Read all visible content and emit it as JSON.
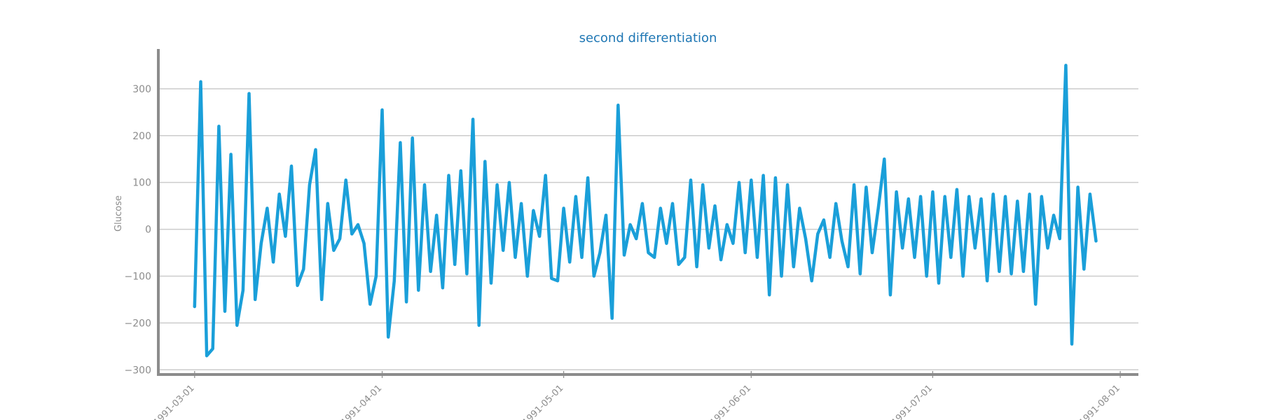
{
  "chart_data": {
    "type": "line",
    "title": "second differentiation",
    "xlabel": "",
    "ylabel": "Glucose",
    "x_ticks": [
      "1991-03-01",
      "1991-04-01",
      "1991-05-01",
      "1991-06-01",
      "1991-07-01",
      "1991-08-01"
    ],
    "y_ticks": [
      -300,
      -200,
      -100,
      0,
      100,
      200,
      300
    ],
    "xlim": [
      "1991-02-23",
      "1991-08-04"
    ],
    "ylim": [
      -310,
      385
    ],
    "grid": "horizontal",
    "line_color": "#1a9fd9",
    "series": [
      {
        "x": [
          "1991-03-01",
          "1991-03-02",
          "1991-03-03",
          "1991-03-04",
          "1991-03-05",
          "1991-03-06",
          "1991-03-07",
          "1991-03-08",
          "1991-03-09",
          "1991-03-10",
          "1991-03-11",
          "1991-03-12",
          "1991-03-13",
          "1991-03-14",
          "1991-03-15",
          "1991-03-16",
          "1991-03-17",
          "1991-03-18",
          "1991-03-19",
          "1991-03-20",
          "1991-03-21",
          "1991-03-22",
          "1991-03-23",
          "1991-03-24",
          "1991-03-25",
          "1991-03-26",
          "1991-03-27",
          "1991-03-28",
          "1991-03-29",
          "1991-03-30",
          "1991-03-31",
          "1991-04-01",
          "1991-04-02",
          "1991-04-03",
          "1991-04-04",
          "1991-04-05",
          "1991-04-06",
          "1991-04-07",
          "1991-04-08",
          "1991-04-09",
          "1991-04-10",
          "1991-04-11",
          "1991-04-12",
          "1991-04-13",
          "1991-04-14",
          "1991-04-15",
          "1991-04-16",
          "1991-04-17",
          "1991-04-18",
          "1991-04-19",
          "1991-04-20",
          "1991-04-21",
          "1991-04-22",
          "1991-04-23",
          "1991-04-24",
          "1991-04-25",
          "1991-04-26",
          "1991-04-27",
          "1991-04-28",
          "1991-04-29",
          "1991-04-30",
          "1991-05-01",
          "1991-05-02",
          "1991-05-03",
          "1991-05-04",
          "1991-05-05",
          "1991-05-06",
          "1991-05-07",
          "1991-05-08",
          "1991-05-09",
          "1991-05-10",
          "1991-05-11",
          "1991-05-12",
          "1991-05-13",
          "1991-05-14",
          "1991-05-15",
          "1991-05-16",
          "1991-05-17",
          "1991-05-18",
          "1991-05-19",
          "1991-05-20",
          "1991-05-21",
          "1991-05-22",
          "1991-05-23",
          "1991-05-24",
          "1991-05-25",
          "1991-05-26",
          "1991-05-27",
          "1991-05-28",
          "1991-05-29",
          "1991-05-30",
          "1991-05-31",
          "1991-06-01",
          "1991-06-02",
          "1991-06-03",
          "1991-06-04",
          "1991-06-05",
          "1991-06-06",
          "1991-06-07",
          "1991-06-08",
          "1991-06-09",
          "1991-06-10",
          "1991-06-11",
          "1991-06-12",
          "1991-06-13",
          "1991-06-14",
          "1991-06-15",
          "1991-06-16",
          "1991-06-17",
          "1991-06-18",
          "1991-06-19",
          "1991-06-20",
          "1991-06-21",
          "1991-06-22",
          "1991-06-23",
          "1991-06-24",
          "1991-06-25",
          "1991-06-26",
          "1991-06-27",
          "1991-06-28",
          "1991-06-29",
          "1991-06-30",
          "1991-07-01",
          "1991-07-02",
          "1991-07-03",
          "1991-07-04",
          "1991-07-05",
          "1991-07-06",
          "1991-07-07",
          "1991-07-08",
          "1991-07-09",
          "1991-07-10",
          "1991-07-11",
          "1991-07-12",
          "1991-07-13",
          "1991-07-14",
          "1991-07-15",
          "1991-07-16",
          "1991-07-17",
          "1991-07-18",
          "1991-07-19",
          "1991-07-20",
          "1991-07-21",
          "1991-07-22",
          "1991-07-23",
          "1991-07-24",
          "1991-07-25",
          "1991-07-26",
          "1991-07-27",
          "1991-07-28"
        ],
        "values": [
          -165,
          315,
          -270,
          -255,
          220,
          -175,
          160,
          -205,
          -130,
          290,
          -150,
          -30,
          45,
          -70,
          75,
          -15,
          135,
          -120,
          -85,
          95,
          170,
          -150,
          55,
          -45,
          -20,
          105,
          -10,
          10,
          -30,
          -160,
          -100,
          255,
          -230,
          -110,
          185,
          -155,
          195,
          -130,
          95,
          -90,
          30,
          -125,
          115,
          -75,
          125,
          -95,
          235,
          -205,
          145,
          -115,
          95,
          -45,
          100,
          -60,
          55,
          -100,
          40,
          -15,
          115,
          -105,
          -110,
          45,
          -70,
          70,
          -60,
          110,
          -100,
          -50,
          30,
          -190,
          265,
          -55,
          10,
          -20,
          55,
          -50,
          -60,
          45,
          -30,
          55,
          -75,
          -60,
          105,
          -80,
          95,
          -40,
          50,
          -65,
          10,
          -30,
          100,
          -50,
          105,
          -60,
          115,
          -140,
          110,
          -100,
          95,
          -80,
          45,
          -20,
          -110,
          -10,
          20,
          -60,
          55,
          -25,
          -80,
          95,
          -95,
          90,
          -50,
          45,
          150,
          -140,
          80,
          -40,
          65,
          -60,
          70,
          -100,
          80,
          -115,
          70,
          -60,
          85,
          -100,
          70,
          -40,
          65,
          -110,
          75,
          -90,
          70,
          -95,
          60,
          -90,
          75,
          -160,
          70,
          -40,
          30,
          -20,
          350,
          -245,
          90,
          -85,
          75,
          -25
        ]
      }
    ]
  }
}
